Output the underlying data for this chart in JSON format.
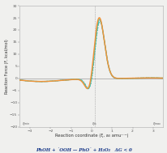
{
  "title": "",
  "xlabel": "Reaction coordinate (ξ, a₀ amu¹⁻²)",
  "ylabel": "Reaction Force (F, kcal/mol)",
  "xlim": [
    -3.5,
    3.5
  ],
  "ylim": [
    -20,
    30
  ],
  "yticks": [
    -20,
    -15,
    -10,
    -5,
    0,
    5,
    10,
    15,
    20,
    25,
    30
  ],
  "xticks": [
    -3,
    -2,
    -1,
    0,
    1,
    2,
    3
  ],
  "vline_x": 0.15,
  "line_orange_color": "#f0943a",
  "line_teal_solid_color": "#3dbfb0",
  "line_teal_dash_color": "#3dbfb0",
  "line_teal_dot_color": "#3dbfb0",
  "bg_color": "#f0f0ee",
  "plot_bg_color": "#f0f0ee",
  "axis_color": "#888888",
  "footnote_color": "#1a3a8a",
  "footnote": "PhOH + ˙OOH — PhO˙ + H₂O₂   ΔG < 0",
  "xi_min_label": "ξ_min",
  "xi_ts_label": "ξ_ts",
  "xi_max_label": "ξ_max",
  "xi_min_x": -3.2,
  "xi_ts_x": 0.15,
  "xi_max_x": 3.2
}
